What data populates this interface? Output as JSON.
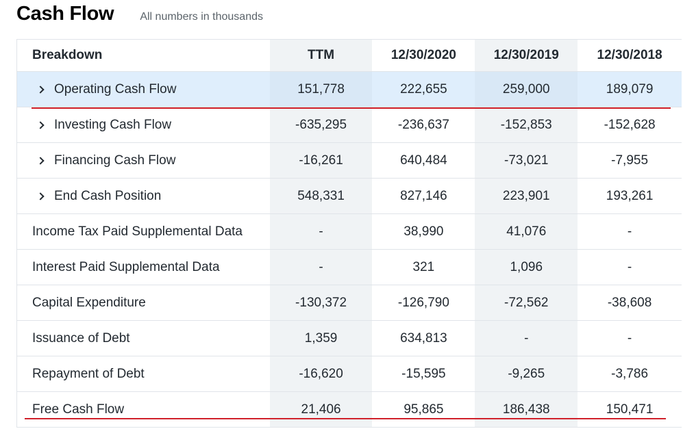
{
  "header": {
    "title": "Cash Flow",
    "subtitle": "All numbers in thousands"
  },
  "table": {
    "columns": [
      "Breakdown",
      "TTM",
      "12/30/2020",
      "12/30/2019",
      "12/30/2018"
    ],
    "rows": [
      {
        "label": "Operating Cash Flow",
        "expandable": true,
        "highlighted": true,
        "values": [
          "151,778",
          "222,655",
          "259,000",
          "189,079"
        ]
      },
      {
        "label": "Investing Cash Flow",
        "expandable": true,
        "values": [
          "-635,295",
          "-236,637",
          "-152,853",
          "-152,628"
        ]
      },
      {
        "label": "Financing Cash Flow",
        "expandable": true,
        "values": [
          "-16,261",
          "640,484",
          "-73,021",
          "-7,955"
        ]
      },
      {
        "label": "End Cash Position",
        "expandable": true,
        "values": [
          "548,331",
          "827,146",
          "223,901",
          "193,261"
        ]
      },
      {
        "label": "Income Tax Paid Supplemental Data",
        "expandable": false,
        "values": [
          "-",
          "38,990",
          "41,076",
          "-"
        ]
      },
      {
        "label": "Interest Paid Supplemental Data",
        "expandable": false,
        "values": [
          "-",
          "321",
          "1,096",
          "-"
        ]
      },
      {
        "label": "Capital Expenditure",
        "expandable": false,
        "values": [
          "-130,372",
          "-126,790",
          "-72,562",
          "-38,608"
        ]
      },
      {
        "label": "Issuance of Debt",
        "expandable": false,
        "values": [
          "1,359",
          "634,813",
          "-",
          "-"
        ]
      },
      {
        "label": "Repayment of Debt",
        "expandable": false,
        "values": [
          "-16,620",
          "-15,595",
          "-9,265",
          "-3,786"
        ]
      },
      {
        "label": "Free Cash Flow",
        "expandable": false,
        "values": [
          "21,406",
          "95,865",
          "186,438",
          "150,471"
        ]
      }
    ]
  },
  "colors": {
    "highlight_row": "#dfeefc",
    "annotation_line": "#d0202a",
    "alt_column": "#f0f3f5"
  },
  "icons": {
    "expand": "chevron-right-icon"
  }
}
